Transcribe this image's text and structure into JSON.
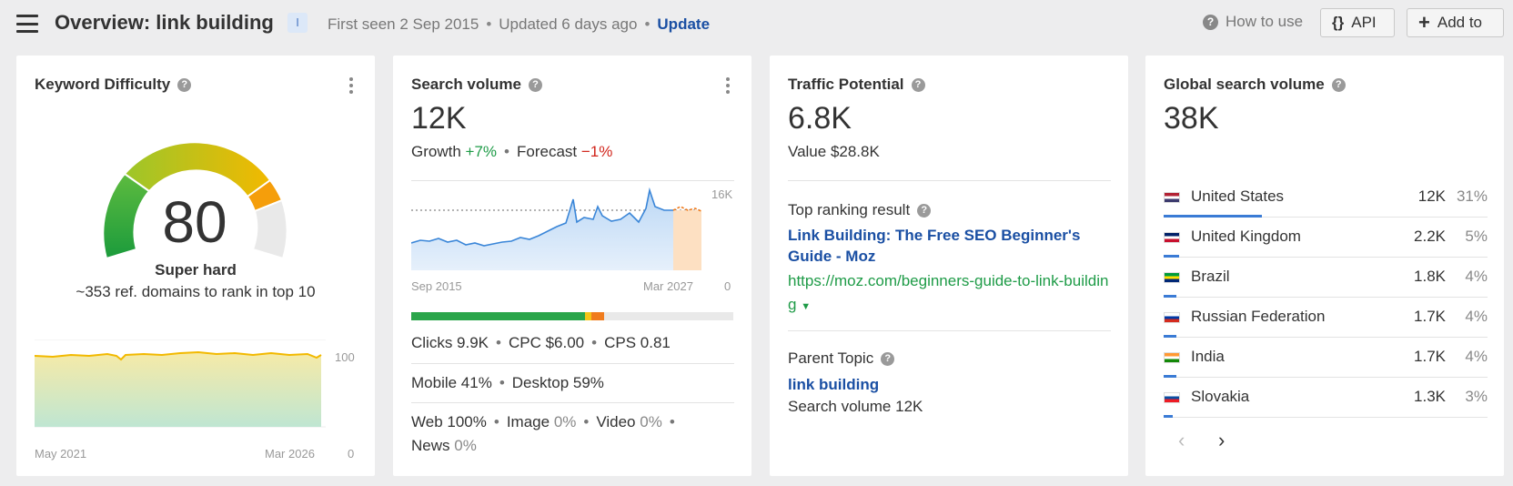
{
  "header": {
    "title": "Overview: link building",
    "intent_badge": "I",
    "first_seen": "First seen 2 Sep 2015",
    "updated": "Updated 6 days ago",
    "update_link": "Update",
    "how_to_use": "How to use",
    "api_label": "API",
    "add_to_label": "Add to"
  },
  "kd": {
    "title": "Keyword Difficulty",
    "value": "80",
    "level": "Super hard",
    "subtitle": "~353 ref. domains to rank in top 10",
    "chart_x_start": "May 2021",
    "chart_x_end": "Mar 2026",
    "chart_y_max": "100",
    "chart_y_min": "0"
  },
  "sv": {
    "title": "Search volume",
    "value": "12K",
    "growth_label": "Growth",
    "growth_value": "+7%",
    "forecast_label": "Forecast",
    "forecast_value": "−1%",
    "chart_y_max": "16K",
    "chart_y_min": "0",
    "chart_x_start": "Sep 2015",
    "chart_x_end": "Mar 2027",
    "clicks": "Clicks 9.9K",
    "cpc": "CPC $6.00",
    "cps": "CPS 0.81",
    "mobile": "Mobile 41%",
    "desktop": "Desktop 59%",
    "web_label": "Web",
    "web_value": "100%",
    "image_label": "Image",
    "image_value": "0%",
    "video_label": "Video",
    "video_value": "0%",
    "news_label": "News",
    "news_value": "0%",
    "clicks_breakdown": [
      {
        "share": 54,
        "color": "#2aa54a"
      },
      {
        "share": 2,
        "color": "#f5c518"
      },
      {
        "share": 4,
        "color": "#f07c1e"
      }
    ]
  },
  "tp": {
    "title": "Traffic Potential",
    "value": "6.8K",
    "value_label": "Value $28.8K",
    "top_ranking_label": "Top ranking result",
    "top_result_title": "Link Building: The Free SEO Beginner's Guide - Moz",
    "top_result_url": "https://moz.com/beginners-guide-to-link-building",
    "parent_topic_label": "Parent Topic",
    "parent_topic": "link building",
    "parent_volume": "Search volume 12K"
  },
  "gv": {
    "title": "Global search volume",
    "value": "38K",
    "countries": [
      {
        "name": "United States",
        "volume": "12K",
        "pct": "31%",
        "share": 31
      },
      {
        "name": "United Kingdom",
        "volume": "2.2K",
        "pct": "5%",
        "share": 5
      },
      {
        "name": "Brazil",
        "volume": "1.8K",
        "pct": "4%",
        "share": 4
      },
      {
        "name": "Russian Federation",
        "volume": "1.7K",
        "pct": "4%",
        "share": 4
      },
      {
        "name": "India",
        "volume": "1.7K",
        "pct": "4%",
        "share": 4
      },
      {
        "name": "Slovakia",
        "volume": "1.3K",
        "pct": "3%",
        "share": 3
      }
    ]
  },
  "colors": {
    "link": "#1a4fa3",
    "positive": "#1e9b47",
    "negative": "#d1251c",
    "bar": "#3a7bd5"
  }
}
